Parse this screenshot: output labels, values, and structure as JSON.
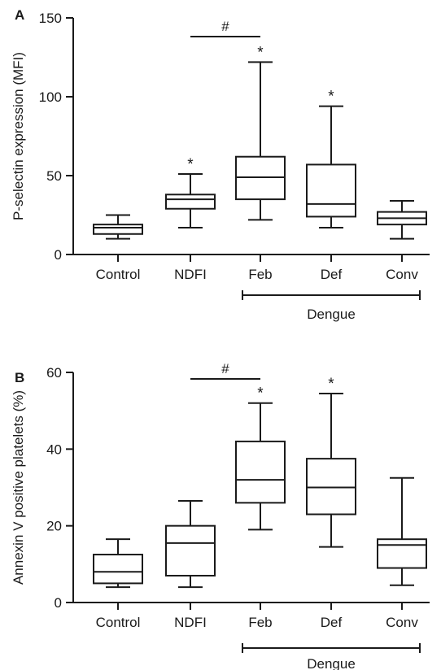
{
  "chart_data": [
    {
      "panel": "A",
      "type": "box",
      "ylabel": "P-selectin expression (MFI)",
      "ylim": [
        0,
        150
      ],
      "yticks": [
        0,
        50,
        100,
        150
      ],
      "categories": [
        "Control",
        "NDFI",
        "Feb",
        "Def",
        "Conv"
      ],
      "boxes": [
        {
          "min": 10,
          "q1": 13,
          "median": 17,
          "q3": 19,
          "max": 25
        },
        {
          "min": 17,
          "q1": 29,
          "median": 35,
          "q3": 38,
          "max": 51
        },
        {
          "min": 22,
          "q1": 35,
          "median": 49,
          "q3": 62,
          "max": 122
        },
        {
          "min": 17,
          "q1": 24,
          "median": 32,
          "q3": 57,
          "max": 94
        },
        {
          "min": 10,
          "q1": 19,
          "median": 23,
          "q3": 27,
          "max": 34
        }
      ],
      "significance": [
        "",
        "*",
        "*",
        "*",
        ""
      ],
      "comparison": {
        "from": "NDFI",
        "to": "Feb",
        "symbol": "#"
      },
      "group_bracket": {
        "from": "Feb",
        "to": "Conv",
        "label": "Dengue"
      }
    },
    {
      "panel": "B",
      "type": "box",
      "ylabel": "Annexin V positive platelets (%)",
      "ylim": [
        0,
        60
      ],
      "yticks": [
        0,
        20,
        40,
        60
      ],
      "categories": [
        "Control",
        "NDFI",
        "Feb",
        "Def",
        "Conv"
      ],
      "boxes": [
        {
          "min": 4,
          "q1": 5,
          "median": 8,
          "q3": 12.5,
          "max": 16.5
        },
        {
          "min": 4,
          "q1": 7,
          "median": 15.5,
          "q3": 20,
          "max": 26.5
        },
        {
          "min": 19,
          "q1": 26,
          "median": 32,
          "q3": 42,
          "max": 52
        },
        {
          "min": 14.5,
          "q1": 23,
          "median": 30,
          "q3": 37.5,
          "max": 54.5
        },
        {
          "min": 4.5,
          "q1": 9,
          "median": 15,
          "q3": 16.5,
          "max": 32.5
        }
      ],
      "significance": [
        "",
        "",
        "*",
        "*",
        ""
      ],
      "comparison": {
        "from": "NDFI",
        "to": "Feb",
        "symbol": "#"
      },
      "group_bracket": {
        "from": "Feb",
        "to": "Conv",
        "label": "Dengue"
      }
    }
  ]
}
